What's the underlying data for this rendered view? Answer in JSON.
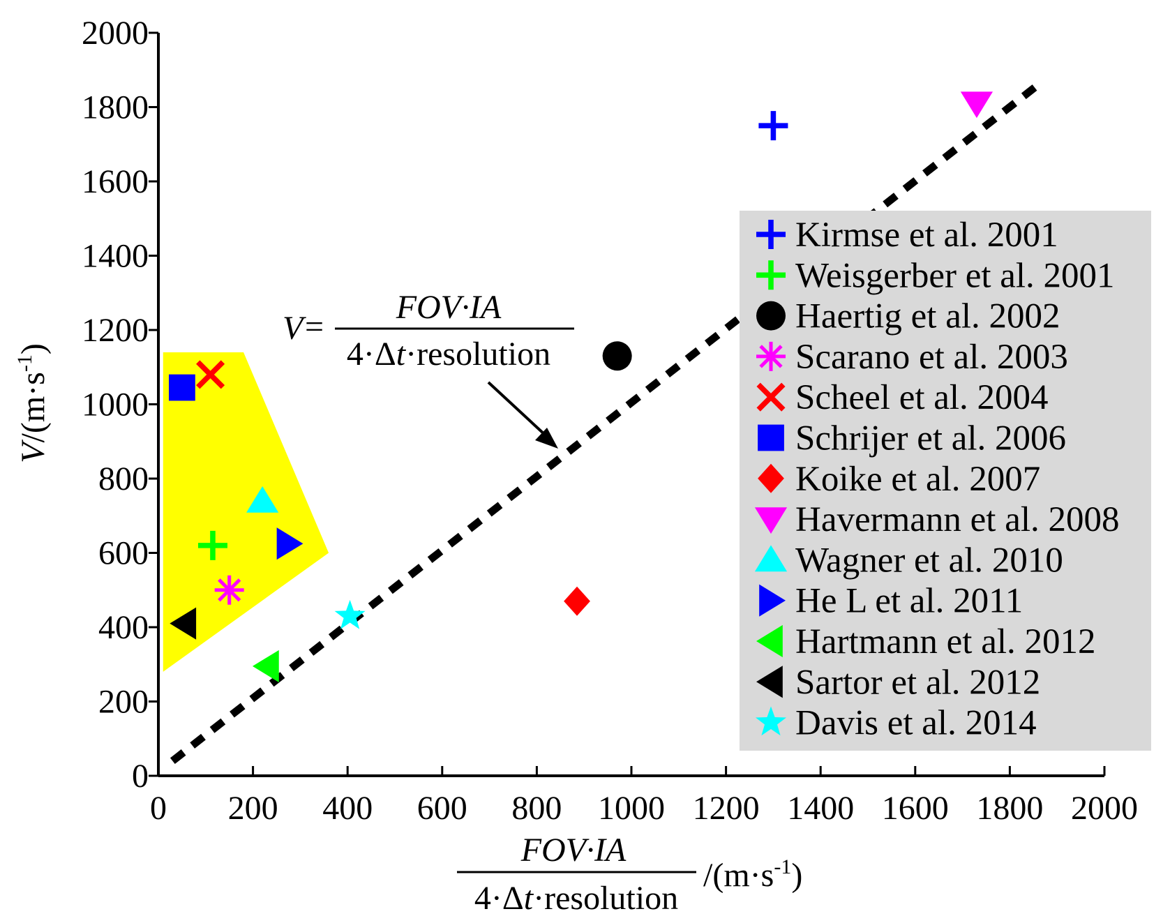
{
  "chart_data": {
    "type": "scatter",
    "title": "",
    "xlim": [
      0,
      2000
    ],
    "ylim": [
      0,
      2000
    ],
    "x_ticks": [
      0,
      200,
      400,
      600,
      800,
      1000,
      1200,
      1400,
      1600,
      1800,
      2000
    ],
    "y_ticks": [
      0,
      200,
      400,
      600,
      800,
      1000,
      1200,
      1400,
      1600,
      1800,
      2000
    ],
    "ylabel": {
      "italic": "V",
      "rest": "/(m·s",
      "sup": "-1",
      "close": ")"
    },
    "xlabel": {
      "numerator": "FOV·IA",
      "denominator_pre": "4·Δ",
      "denominator_italic": "t",
      "denominator_post": "·resolution",
      "unit": "/(m·s",
      "unit_sup": "-1",
      "unit_close": ")"
    },
    "formula": {
      "lhs": "V",
      "eq": "=",
      "numerator": "FOV·IA",
      "denominator_pre": "4·Δ",
      "denominator_italic": "t",
      "denominator_post": "·resolution"
    },
    "fit_line": {
      "x": [
        30,
        1870
      ],
      "y": [
        40,
        1870
      ],
      "style": "dashed",
      "color": "#000000"
    },
    "highlight_region": {
      "color": "#ffff00",
      "polygon": [
        [
          10,
          1140
        ],
        [
          180,
          1140
        ],
        [
          360,
          600
        ],
        [
          10,
          280
        ]
      ]
    },
    "series": [
      {
        "name": "Kirmse et al. 2001",
        "marker": "plus",
        "color": "#0000ff",
        "x": 1300,
        "y": 1750
      },
      {
        "name": "Weisgerber et al. 2001",
        "marker": "plus",
        "color": "#00ff00",
        "x": 115,
        "y": 620
      },
      {
        "name": "Haertig et al. 2002",
        "marker": "circle",
        "color": "#000000",
        "x": 970,
        "y": 1130
      },
      {
        "name": "Scarano et al. 2003",
        "marker": "asterisk",
        "color": "#ff00ff",
        "x": 150,
        "y": 500
      },
      {
        "name": "Scheel et al. 2004",
        "marker": "x",
        "color": "#ff0000",
        "x": 110,
        "y": 1080
      },
      {
        "name": "Schrijer et al. 2006",
        "marker": "square",
        "color": "#0000ff",
        "x": 50,
        "y": 1045
      },
      {
        "name": "Koike et al. 2007",
        "marker": "diamond",
        "color": "#ff0000",
        "x": 885,
        "y": 470
      },
      {
        "name": "Havermann et al. 2008",
        "marker": "triangle-down",
        "color": "#ff00ff",
        "x": 1730,
        "y": 1810
      },
      {
        "name": "Wagner et al. 2010",
        "marker": "triangle-up",
        "color": "#00ffff",
        "x": 220,
        "y": 740
      },
      {
        "name": "He L et al. 2011",
        "marker": "triangle-right",
        "color": "#0000ff",
        "x": 275,
        "y": 625
      },
      {
        "name": "Hartmann et al. 2012",
        "marker": "triangle-left",
        "color": "#00ff00",
        "x": 230,
        "y": 295
      },
      {
        "name": "Sartor et al. 2012",
        "marker": "triangle-left",
        "color": "#000000",
        "x": 55,
        "y": 410
      },
      {
        "name": "Davis et al. 2014",
        "marker": "star",
        "color": "#00ffff",
        "x": 405,
        "y": 430
      }
    ],
    "legend": {
      "position": "right",
      "background": "#d9d9d9"
    }
  }
}
